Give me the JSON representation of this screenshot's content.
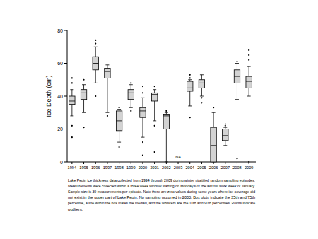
{
  "chart_data": {
    "type": "box",
    "y_label": "Ice Depth (cm)",
    "categories": [
      "1994",
      "1995",
      "1996",
      "1997",
      "1998",
      "1999",
      "2000",
      "2001",
      "2002",
      "2003",
      "2004",
      "2005",
      "2006",
      "2007",
      "2008",
      "2009"
    ],
    "q1": [
      35,
      38,
      56,
      51,
      19,
      38,
      27,
      37,
      20,
      null,
      43,
      45,
      0,
      13,
      48,
      45
    ],
    "median": [
      37,
      42,
      60,
      55,
      25,
      42,
      31,
      41,
      28,
      null,
      45,
      48,
      10,
      16,
      52,
      49
    ],
    "q3": [
      40,
      44,
      64,
      57,
      31,
      44,
      33,
      42,
      29,
      null,
      49,
      50,
      21,
      20,
      56,
      52
    ],
    "p10": [
      28,
      30,
      48,
      30,
      12,
      33,
      15,
      25,
      0,
      null,
      34,
      40,
      0,
      10,
      38,
      40
    ],
    "p90": [
      44,
      47,
      70,
      59,
      32,
      47,
      39,
      44,
      30,
      null,
      50,
      53,
      30,
      21,
      60,
      58
    ],
    "outliers": [
      [
        15,
        22,
        48,
        51
      ],
      [
        21,
        50
      ],
      [
        40,
        72,
        74
      ],
      [
        28
      ],
      [
        9,
        33
      ],
      [
        31,
        48
      ],
      [
        4,
        12,
        42,
        46
      ],
      [
        6,
        22,
        46
      ],
      [
        31
      ],
      [],
      [
        27,
        51,
        53
      ],
      [
        36,
        39
      ],
      [
        33
      ],
      [
        22,
        23
      ],
      [
        2,
        61
      ],
      [
        0,
        62,
        65,
        68
      ]
    ],
    "color": "#d3d3d3",
    "ylim": [
      0,
      80
    ],
    "yticks": [
      0,
      20,
      40,
      60,
      80
    ],
    "annotations": [
      {
        "text": "NA",
        "x": "2003"
      }
    ],
    "caption_lines": [
      "Lake Pepin ice thickness data collected from 1994 through 2009 during winter stratified random sampling episodes.",
      "Measurements were collected within a three week window starting on Monday's of the last full work week of January.",
      "Sample size is 30 measurements per episode. Note there are zero values during some years where ice coverage did",
      "not exist in the upper part of Lake Pepin. No sampling occurred in 2003.  Box plots indicate the 25th and 75th",
      "percentile, a line within the box marks the median, and the whiskers are the 10th and 90th percentiles. Points indicate",
      "outliers."
    ]
  }
}
